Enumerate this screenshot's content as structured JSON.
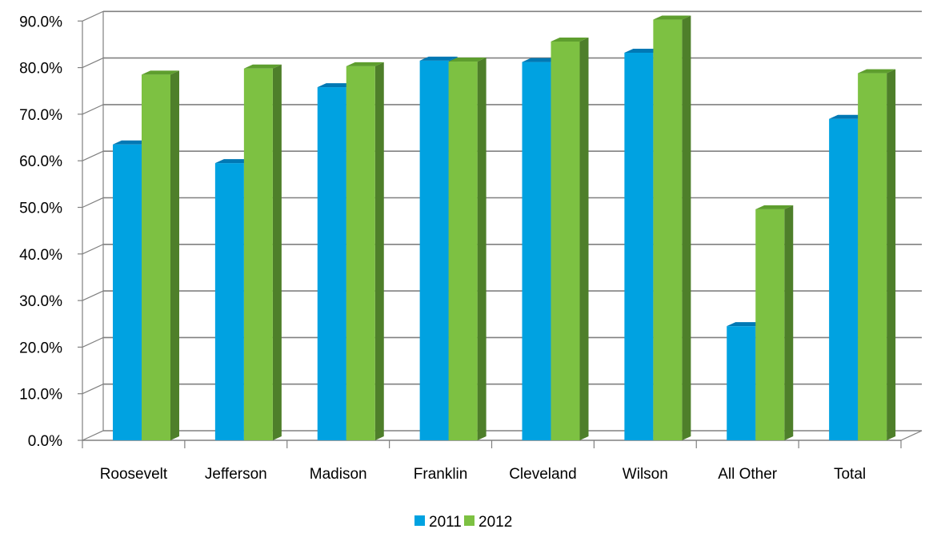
{
  "chart_data": {
    "type": "bar",
    "title": "",
    "xlabel": "",
    "ylabel": "",
    "categories": [
      "Roosevelt",
      "Jefferson",
      "Madison",
      "Franklin",
      "Cleveland",
      "Wilson",
      "All Other",
      "Total"
    ],
    "series": [
      {
        "name": "2011",
        "color": "#00A2E1",
        "top_color": "#0078B4",
        "values": [
          63.5,
          59.5,
          75.8,
          81.5,
          81.2,
          83.2,
          24.5,
          69.0
        ]
      },
      {
        "name": "2012",
        "color": "#7DC142",
        "top_color": "#5E9E2E",
        "side_color": "#4E7F2A",
        "values": [
          78.5,
          79.8,
          80.3,
          81.3,
          85.6,
          90.3,
          49.6,
          78.8
        ]
      }
    ],
    "ylim": [
      0,
      90
    ],
    "yticks": [
      "0.0%",
      "10.0%",
      "20.0%",
      "30.0%",
      "40.0%",
      "50.0%",
      "60.0%",
      "70.0%",
      "80.0%",
      "90.0%"
    ],
    "grid": true,
    "legend_position": "bottom-center",
    "style": "3d-clustered-column"
  }
}
